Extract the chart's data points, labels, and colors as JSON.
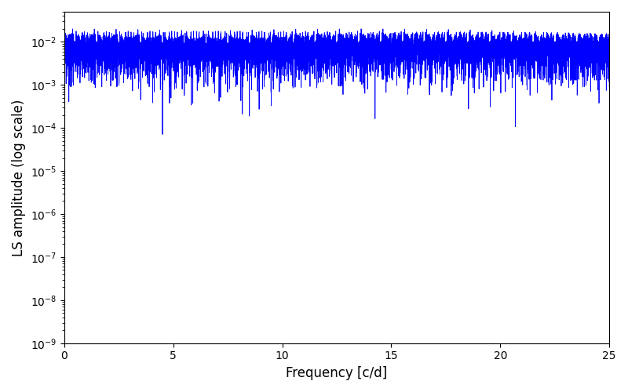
{
  "xlabel": "Frequency [c/d]",
  "ylabel": "LS amplitude (log scale)",
  "line_color": "#0000ff",
  "line_width": 0.6,
  "xmin": 0,
  "xmax": 25,
  "ymin": 1e-09,
  "ymax": 0.05,
  "n_freq": 8000,
  "background_color": "#ffffff",
  "figsize": [
    8.0,
    5.0
  ],
  "dpi": 100
}
